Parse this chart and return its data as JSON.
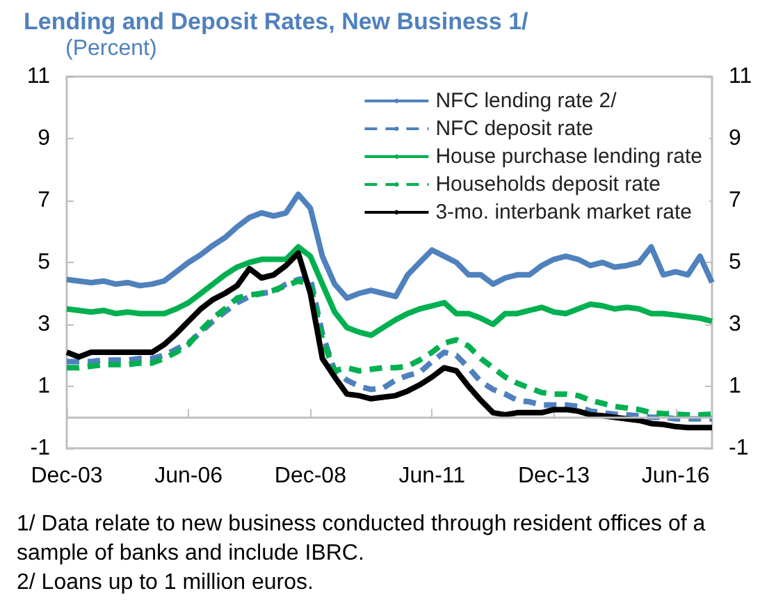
{
  "chart_data": {
    "type": "line",
    "title": "Lending and Deposit Rates, New Business 1/",
    "subtitle": "(Percent)",
    "x": [
      "2003-12",
      "2004-03",
      "2004-06",
      "2004-09",
      "2004-12",
      "2005-03",
      "2005-06",
      "2005-09",
      "2005-12",
      "2006-03",
      "2006-06",
      "2006-09",
      "2006-12",
      "2007-03",
      "2007-06",
      "2007-09",
      "2007-12",
      "2008-03",
      "2008-06",
      "2008-09",
      "2008-12",
      "2009-03",
      "2009-06",
      "2009-09",
      "2009-12",
      "2010-03",
      "2010-06",
      "2010-09",
      "2010-12",
      "2011-03",
      "2011-06",
      "2011-09",
      "2011-12",
      "2012-03",
      "2012-06",
      "2012-09",
      "2012-12",
      "2013-03",
      "2013-06",
      "2013-09",
      "2013-12",
      "2014-03",
      "2014-06",
      "2014-09",
      "2014-12",
      "2015-03",
      "2015-06",
      "2015-09",
      "2015-12",
      "2016-03",
      "2016-06",
      "2016-09",
      "2016-12",
      "2017-03"
    ],
    "series": [
      {
        "name": "NFC lending rate 2/",
        "color": "#4f81bd",
        "line_style": "solid",
        "values": [
          4.45,
          4.4,
          4.35,
          4.4,
          4.3,
          4.35,
          4.25,
          4.3,
          4.4,
          4.7,
          5.0,
          5.25,
          5.55,
          5.8,
          6.15,
          6.45,
          6.6,
          6.5,
          6.6,
          7.2,
          6.75,
          5.2,
          4.3,
          3.85,
          4.0,
          4.1,
          4.0,
          3.9,
          4.6,
          5.0,
          5.4,
          5.2,
          5.0,
          4.6,
          4.6,
          4.3,
          4.5,
          4.6,
          4.6,
          4.9,
          5.1,
          5.2,
          5.1,
          4.9,
          5.0,
          4.85,
          4.9,
          5.0,
          5.5,
          4.6,
          4.7,
          4.6,
          5.2,
          4.35
        ]
      },
      {
        "name": "NFC deposit rate",
        "color": "#4f81bd",
        "line_style": "dashed",
        "values": [
          1.8,
          1.8,
          1.8,
          1.85,
          1.85,
          1.85,
          1.9,
          1.9,
          2.0,
          2.2,
          2.4,
          2.75,
          3.1,
          3.4,
          3.7,
          3.9,
          4.0,
          4.05,
          4.3,
          4.45,
          4.5,
          2.7,
          1.5,
          1.2,
          1.0,
          0.9,
          0.95,
          1.2,
          1.35,
          1.45,
          1.8,
          2.1,
          2.0,
          1.6,
          1.15,
          0.9,
          0.75,
          0.55,
          0.5,
          0.4,
          0.4,
          0.4,
          0.35,
          0.2,
          0.15,
          0.1,
          0.08,
          0.05,
          0.0,
          0.0,
          -0.05,
          -0.05,
          -0.05,
          -0.05
        ]
      },
      {
        "name": "House purchase lending rate",
        "color": "#00b050",
        "line_style": "solid",
        "values": [
          3.5,
          3.45,
          3.4,
          3.45,
          3.35,
          3.4,
          3.35,
          3.35,
          3.35,
          3.5,
          3.7,
          4.0,
          4.3,
          4.6,
          4.85,
          5.0,
          5.1,
          5.1,
          5.1,
          5.5,
          5.2,
          4.3,
          3.4,
          2.9,
          2.75,
          2.65,
          2.9,
          3.15,
          3.35,
          3.5,
          3.6,
          3.7,
          3.35,
          3.35,
          3.2,
          3.0,
          3.35,
          3.35,
          3.45,
          3.55,
          3.4,
          3.35,
          3.5,
          3.65,
          3.6,
          3.5,
          3.55,
          3.5,
          3.35,
          3.35,
          3.3,
          3.25,
          3.2,
          3.1
        ]
      },
      {
        "name": "Households deposit rate",
        "color": "#00b050",
        "line_style": "dashed",
        "values": [
          1.6,
          1.6,
          1.65,
          1.7,
          1.7,
          1.7,
          1.75,
          1.75,
          1.9,
          2.1,
          2.35,
          2.8,
          3.2,
          3.5,
          3.85,
          3.95,
          4.0,
          4.1,
          4.25,
          4.4,
          4.3,
          2.5,
          1.5,
          1.6,
          1.5,
          1.55,
          1.6,
          1.6,
          1.65,
          1.85,
          2.1,
          2.4,
          2.5,
          2.3,
          1.9,
          1.6,
          1.3,
          1.1,
          0.95,
          0.8,
          0.75,
          0.75,
          0.7,
          0.55,
          0.45,
          0.35,
          0.3,
          0.25,
          0.15,
          0.12,
          0.1,
          0.08,
          0.08,
          0.1
        ]
      },
      {
        "name": "3-mo. interbank market rate",
        "color": "#000000",
        "line_style": "solid",
        "values": [
          2.1,
          1.95,
          2.1,
          2.1,
          2.1,
          2.1,
          2.1,
          2.1,
          2.35,
          2.7,
          3.1,
          3.5,
          3.8,
          4.0,
          4.25,
          4.8,
          4.5,
          4.6,
          4.9,
          5.3,
          4.0,
          1.9,
          1.3,
          0.75,
          0.7,
          0.6,
          0.65,
          0.7,
          0.85,
          1.05,
          1.3,
          1.6,
          1.5,
          1.0,
          0.55,
          0.15,
          0.08,
          0.15,
          0.15,
          0.15,
          0.25,
          0.25,
          0.2,
          0.08,
          0.05,
          0.0,
          -0.05,
          -0.1,
          -0.2,
          -0.23,
          -0.3,
          -0.33,
          -0.33,
          -0.33
        ]
      }
    ],
    "xlim": [
      "2003-12",
      "2017-03"
    ],
    "xticks": [
      {
        "value": "2003-12",
        "label": "Dec-03"
      },
      {
        "value": "2006-06",
        "label": "Jun-06"
      },
      {
        "value": "2008-12",
        "label": "Dec-08"
      },
      {
        "value": "2011-06",
        "label": "Jun-11"
      },
      {
        "value": "2013-12",
        "label": "Dec-13"
      },
      {
        "value": "2016-06",
        "label": "Jun-16"
      }
    ],
    "ylim": [
      -1,
      11
    ],
    "yticks": [
      -1,
      1,
      3,
      5,
      7,
      9,
      11
    ],
    "y2lim": [
      -1,
      11
    ],
    "y2ticks": [
      -1,
      1,
      3,
      5,
      7,
      9,
      11
    ],
    "ref_lines": [
      {
        "axis": "y",
        "value": 0,
        "color": "#bfbfbf"
      }
    ],
    "grid": false,
    "legend": "top right",
    "marker": "none",
    "annotations": [
      "1/ Data relate to new business conducted through resident offices of a sample of banks and include IBRC.",
      "2/ Loans up to 1 million euros."
    ]
  }
}
